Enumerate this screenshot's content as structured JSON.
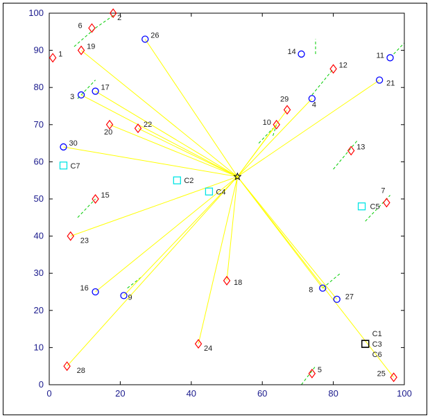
{
  "chart_data": {
    "type": "scatter",
    "title": "",
    "xlabel": "",
    "ylabel": "",
    "xlim": [
      0,
      100
    ],
    "ylim": [
      0,
      100
    ],
    "x_ticks": [
      "0",
      "20",
      "40",
      "60",
      "80",
      "100"
    ],
    "y_ticks": [
      "0",
      "10",
      "20",
      "30",
      "40",
      "50",
      "60",
      "70",
      "80",
      "90",
      "100"
    ],
    "grid": false,
    "center": {
      "x": 53,
      "y": 56,
      "marker": "star"
    },
    "series": [
      {
        "marker": "circle",
        "color": "#0000ff",
        "points": [
          {
            "label": "3",
            "x": 9,
            "y": 78
          },
          {
            "label": "4",
            "x": 74,
            "y": 77
          },
          {
            "label": "8",
            "x": 77,
            "y": 26
          },
          {
            "label": "9",
            "x": 21,
            "y": 24
          },
          {
            "label": "11",
            "x": 96,
            "y": 88
          },
          {
            "label": "14",
            "x": 71,
            "y": 89
          },
          {
            "label": "16",
            "x": 13,
            "y": 25
          },
          {
            "label": "17",
            "x": 13,
            "y": 79
          },
          {
            "label": "21",
            "x": 93,
            "y": 82
          },
          {
            "label": "26",
            "x": 27,
            "y": 93
          },
          {
            "label": "27",
            "x": 81,
            "y": 23
          },
          {
            "label": "30",
            "x": 4,
            "y": 64
          }
        ]
      },
      {
        "marker": "diamond",
        "color": "#ff0000",
        "points": [
          {
            "label": "1",
            "x": 1,
            "y": 88
          },
          {
            "label": "2",
            "x": 18,
            "y": 100
          },
          {
            "label": "5",
            "x": 74,
            "y": 3
          },
          {
            "label": "6",
            "x": 12,
            "y": 96
          },
          {
            "label": "7",
            "x": 95,
            "y": 49
          },
          {
            "label": "10",
            "x": 64,
            "y": 70
          },
          {
            "label": "12",
            "x": 80,
            "y": 85
          },
          {
            "label": "13",
            "x": 85,
            "y": 63
          },
          {
            "label": "15",
            "x": 13,
            "y": 50
          },
          {
            "label": "18",
            "x": 50,
            "y": 28
          },
          {
            "label": "19",
            "x": 9,
            "y": 90
          },
          {
            "label": "20",
            "x": 17,
            "y": 70
          },
          {
            "label": "22",
            "x": 25,
            "y": 69
          },
          {
            "label": "23",
            "x": 6,
            "y": 40
          },
          {
            "label": "24",
            "x": 42,
            "y": 11
          },
          {
            "label": "25",
            "x": 97,
            "y": 2
          },
          {
            "label": "28",
            "x": 5,
            "y": 5
          },
          {
            "label": "29",
            "x": 67,
            "y": 74
          }
        ]
      },
      {
        "marker": "square",
        "color": "#00e5e5",
        "points": [
          {
            "label": "C2",
            "x": 36,
            "y": 55
          },
          {
            "label": "C4",
            "x": 45,
            "y": 52
          },
          {
            "label": "C5",
            "x": 88,
            "y": 48
          },
          {
            "label": "C7",
            "x": 4,
            "y": 59
          }
        ]
      },
      {
        "marker": "square",
        "color": "#000000",
        "points": [
          {
            "label": "C1",
            "x": 89,
            "y": 11
          },
          {
            "label": "C3",
            "x": 89,
            "y": 11
          },
          {
            "label": "C6",
            "x": 89,
            "y": 11
          }
        ]
      }
    ],
    "links": {
      "color": "#ffff00",
      "from": "center",
      "to": [
        "3",
        "4",
        "8",
        "9",
        "16",
        "17",
        "21",
        "22",
        "23",
        "24",
        "26",
        "27",
        "28",
        "30",
        "18",
        "19",
        "20",
        "25",
        "10",
        "29"
      ]
    },
    "dashes": {
      "color": "#00cc00",
      "segments": [
        [
          [
            13,
            96
          ],
          [
            19,
            100
          ]
        ],
        [
          [
            7,
            91
          ],
          [
            13,
            96
          ]
        ],
        [
          [
            8,
            77
          ],
          [
            13,
            82
          ]
        ],
        [
          [
            75,
            89
          ],
          [
            75,
            93
          ]
        ],
        [
          [
            97,
            89
          ],
          [
            100,
            92
          ]
        ],
        [
          [
            74,
            78
          ],
          [
            80,
            85
          ]
        ],
        [
          [
            63,
            67
          ],
          [
            64,
            70
          ]
        ],
        [
          [
            59,
            65
          ],
          [
            63,
            69
          ]
        ],
        [
          [
            80,
            58
          ],
          [
            87,
            66
          ]
        ],
        [
          [
            89,
            44
          ],
          [
            96,
            51
          ]
        ],
        [
          [
            8,
            45
          ],
          [
            13,
            50
          ]
        ],
        [
          [
            22,
            26
          ],
          [
            26,
            29
          ]
        ],
        [
          [
            77,
            26
          ],
          [
            82,
            30
          ]
        ],
        [
          [
            71,
            0
          ],
          [
            75,
            5
          ]
        ]
      ]
    }
  }
}
